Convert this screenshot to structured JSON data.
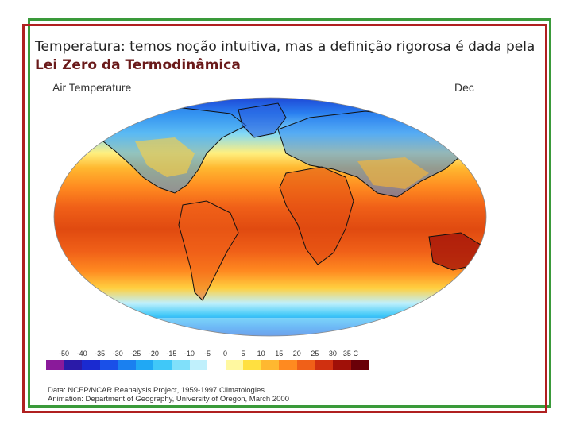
{
  "slide": {
    "text_prefix": "Temperatura: temos noção intuitiva, mas a definição rigorosa é dada pela ",
    "text_bold": "Lei Zero da Termodinâmica"
  },
  "map": {
    "title": "Air Temperature",
    "month": "Dec",
    "scale_labels": [
      "-50",
      "-40",
      "-35",
      "-30",
      "-25",
      "-20",
      "-15",
      "-10",
      "-5",
      "0",
      "5",
      "10",
      "15",
      "20",
      "25",
      "30",
      "35 C"
    ],
    "scale_colors": [
      "#8a1a9a",
      "#2a1aa8",
      "#1a2ad0",
      "#1a50e8",
      "#1a80f0",
      "#20a8f4",
      "#40c8f8",
      "#80e0fa",
      "#c0f0fc",
      "#ffffff",
      "#fff8a0",
      "#ffe040",
      "#ffb830",
      "#ff8a20",
      "#f06018",
      "#d03010",
      "#a01008",
      "#6a0008"
    ]
  },
  "credits": {
    "line1": "Data:  NCEP/NCAR Reanalysis Project, 1959-1997 Climatologies",
    "line2": "Animation:  Department of Geography, University of Oregon, March 2000"
  }
}
